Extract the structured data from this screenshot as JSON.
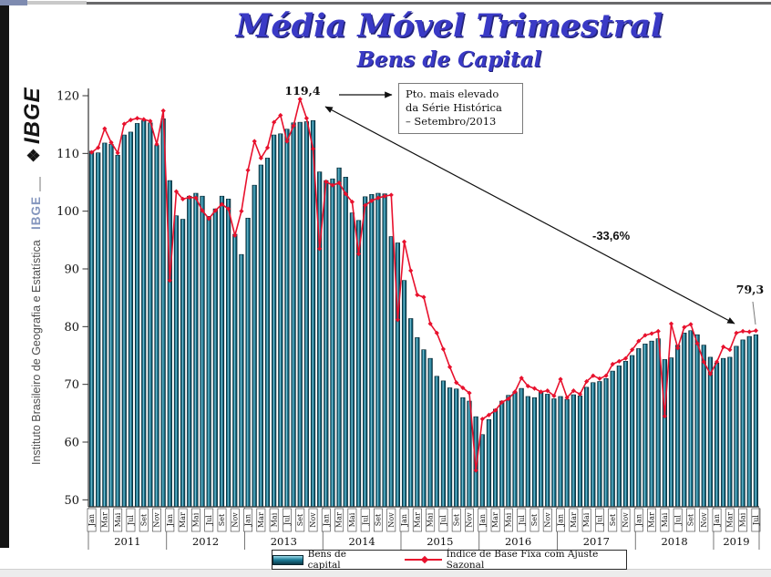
{
  "header": {
    "title": "Média Móvel Trimestral",
    "subtitle": "Bens de Capital"
  },
  "sidebar": {
    "logo": "IBGE",
    "brand": "IBGE",
    "institute": "Instituto Brasileiro de Geografia e Estatística"
  },
  "annotations": {
    "peak_value": "119,4",
    "note_lines": [
      "Pto. mais elevado",
      "da Série Histórica",
      "– Setembro/2013"
    ],
    "drop_pct": "-33,6%",
    "end_value": "79,3"
  },
  "legend": {
    "bar_label": "Bens de capital",
    "line_label": "Índice de Base Fixa com Ajuste Sazonal"
  },
  "colors": {
    "bar_dark": "#0b3a49",
    "bar_mid": "#1d7e99",
    "bar_light": "#9fdcea",
    "bar_stroke": "#06242e",
    "line": "#e8112d",
    "axis": "#333333",
    "title": "#3a3ac6"
  },
  "chart_data": {
    "type": "bar+line",
    "title": "Média Móvel Trimestral — Bens de Capital",
    "x_start": "Jan/2011",
    "x_end": "Jul/2019",
    "ylim": [
      50,
      120
    ],
    "yticks": [
      120,
      110,
      100,
      90,
      80,
      70,
      60,
      50
    ],
    "grid": false,
    "legend_position": "bottom",
    "month_tick_labels": [
      "Jan",
      "Mar",
      "Mai",
      "Jul",
      "Set",
      "Nov"
    ],
    "years": [
      {
        "label": "2011",
        "months": 12
      },
      {
        "label": "2012",
        "months": 12
      },
      {
        "label": "2013",
        "months": 12
      },
      {
        "label": "2014",
        "months": 12
      },
      {
        "label": "2015",
        "months": 12
      },
      {
        "label": "2016",
        "months": 12
      },
      {
        "label": "2017",
        "months": 12
      },
      {
        "label": "2018",
        "months": 12
      },
      {
        "label": "2019",
        "months": 7
      }
    ],
    "series": [
      {
        "name": "Bens de capital",
        "type": "bar",
        "values": [
          110.4,
          110.1,
          111.8,
          111.6,
          109.7,
          113.2,
          113.7,
          115.2,
          115.7,
          115.3,
          111.4,
          116.0,
          105.3,
          99.2,
          98.6,
          102.6,
          103.1,
          102.6,
          99.1,
          100.4,
          102.6,
          102.1,
          96.0,
          92.5,
          98.8,
          104.5,
          108.0,
          109.2,
          113.2,
          113.4,
          114.2,
          115.3,
          115.4,
          115.5,
          115.7,
          106.8,
          105.3,
          105.6,
          107.5,
          105.9,
          99.7,
          98.4,
          102.5,
          102.9,
          103.1,
          103.0,
          95.6,
          94.5,
          88.0,
          81.4,
          78.1,
          76.0,
          74.5,
          71.4,
          70.6,
          69.4,
          69.2,
          67.7,
          67.1,
          64.4,
          61.3,
          63.9,
          65.7,
          67.1,
          68.1,
          68.7,
          69.3,
          67.9,
          67.7,
          68.7,
          68.3,
          67.5,
          67.9,
          67.4,
          68.2,
          68.0,
          69.5,
          70.3,
          70.5,
          71.0,
          72.3,
          73.2,
          74.0,
          75.0,
          76.2,
          77.0,
          77.5,
          77.9,
          74.3,
          74.6,
          76.8,
          78.9,
          79.3,
          78.6,
          76.8,
          74.7,
          73.7,
          74.5,
          74.7,
          76.6,
          77.7,
          78.3,
          78.6
        ]
      },
      {
        "name": "Índice de Base Fixa com Ajuste Sazonal",
        "type": "line",
        "values": [
          110.2,
          111.0,
          114.3,
          111.9,
          110.1,
          115.1,
          115.8,
          116.1,
          115.9,
          115.6,
          111.6,
          117.4,
          88.0,
          103.4,
          102.1,
          102.4,
          102.3,
          100.1,
          98.7,
          100.1,
          101.2,
          100.4,
          95.8,
          100.0,
          107.1,
          112.1,
          109.2,
          111.0,
          115.4,
          116.6,
          112.1,
          114.8,
          119.4,
          116.1,
          110.8,
          93.5,
          105.1,
          104.5,
          104.9,
          103.0,
          101.6,
          92.6,
          101.0,
          101.8,
          102.3,
          102.6,
          102.8,
          81.2,
          94.7,
          89.7,
          85.5,
          85.1,
          80.5,
          78.9,
          76.1,
          73.0,
          70.3,
          69.4,
          68.5,
          55.1,
          64.0,
          64.7,
          65.5,
          66.9,
          67.5,
          68.7,
          71.1,
          69.7,
          69.3,
          68.7,
          68.9,
          68.0,
          70.9,
          67.7,
          68.9,
          68.3,
          70.5,
          71.5,
          71.0,
          71.5,
          73.5,
          74.0,
          74.5,
          76.0,
          77.5,
          78.5,
          78.8,
          79.2,
          64.5,
          80.5,
          76.3,
          79.9,
          80.4,
          77.1,
          73.9,
          71.8,
          73.9,
          76.5,
          76.0,
          78.9,
          79.2,
          79.1,
          79.3
        ]
      }
    ],
    "annotations": {
      "peak": {
        "value": 119.4,
        "month": "Set/2013"
      },
      "end": {
        "value": 79.3,
        "month": "Jul/2019"
      },
      "change": "-33,6%"
    }
  }
}
